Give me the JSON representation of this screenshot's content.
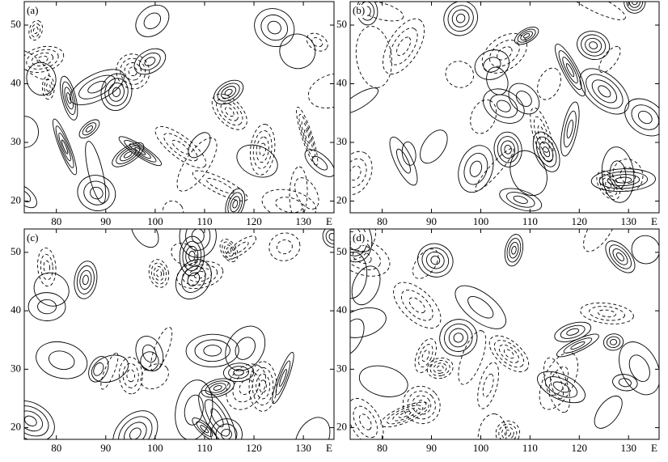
{
  "chart_data": [
    {
      "type": "contour",
      "panel_label": "(a)",
      "x_unit": "E",
      "xlim": [
        73.5,
        136.2
      ],
      "ylim": [
        18,
        54
      ],
      "xticks": [
        80,
        90,
        100,
        110,
        120,
        130
      ],
      "yticks": [
        20,
        30,
        40,
        50
      ]
    },
    {
      "type": "contour",
      "panel_label": "(b)",
      "x_unit": "E",
      "xlim": [
        73.5,
        136.2
      ],
      "ylim": [
        18,
        54
      ],
      "xticks": [
        80,
        90,
        100,
        110,
        120,
        130
      ],
      "yticks": [
        20,
        30,
        40,
        50
      ]
    },
    {
      "type": "contour",
      "panel_label": "(c)",
      "x_unit": "E",
      "xlim": [
        73.5,
        136.2
      ],
      "ylim": [
        18,
        54
      ],
      "xticks": [
        80,
        90,
        100,
        110,
        120,
        130
      ],
      "yticks": [
        20,
        30,
        40,
        50
      ]
    },
    {
      "type": "contour",
      "panel_label": "(d)",
      "x_unit": "E",
      "xlim": [
        73.5,
        136.2
      ],
      "ylim": [
        18,
        54
      ],
      "xticks": [
        80,
        90,
        100,
        110,
        120,
        130
      ],
      "yticks": [
        20,
        30,
        40,
        50
      ]
    }
  ]
}
